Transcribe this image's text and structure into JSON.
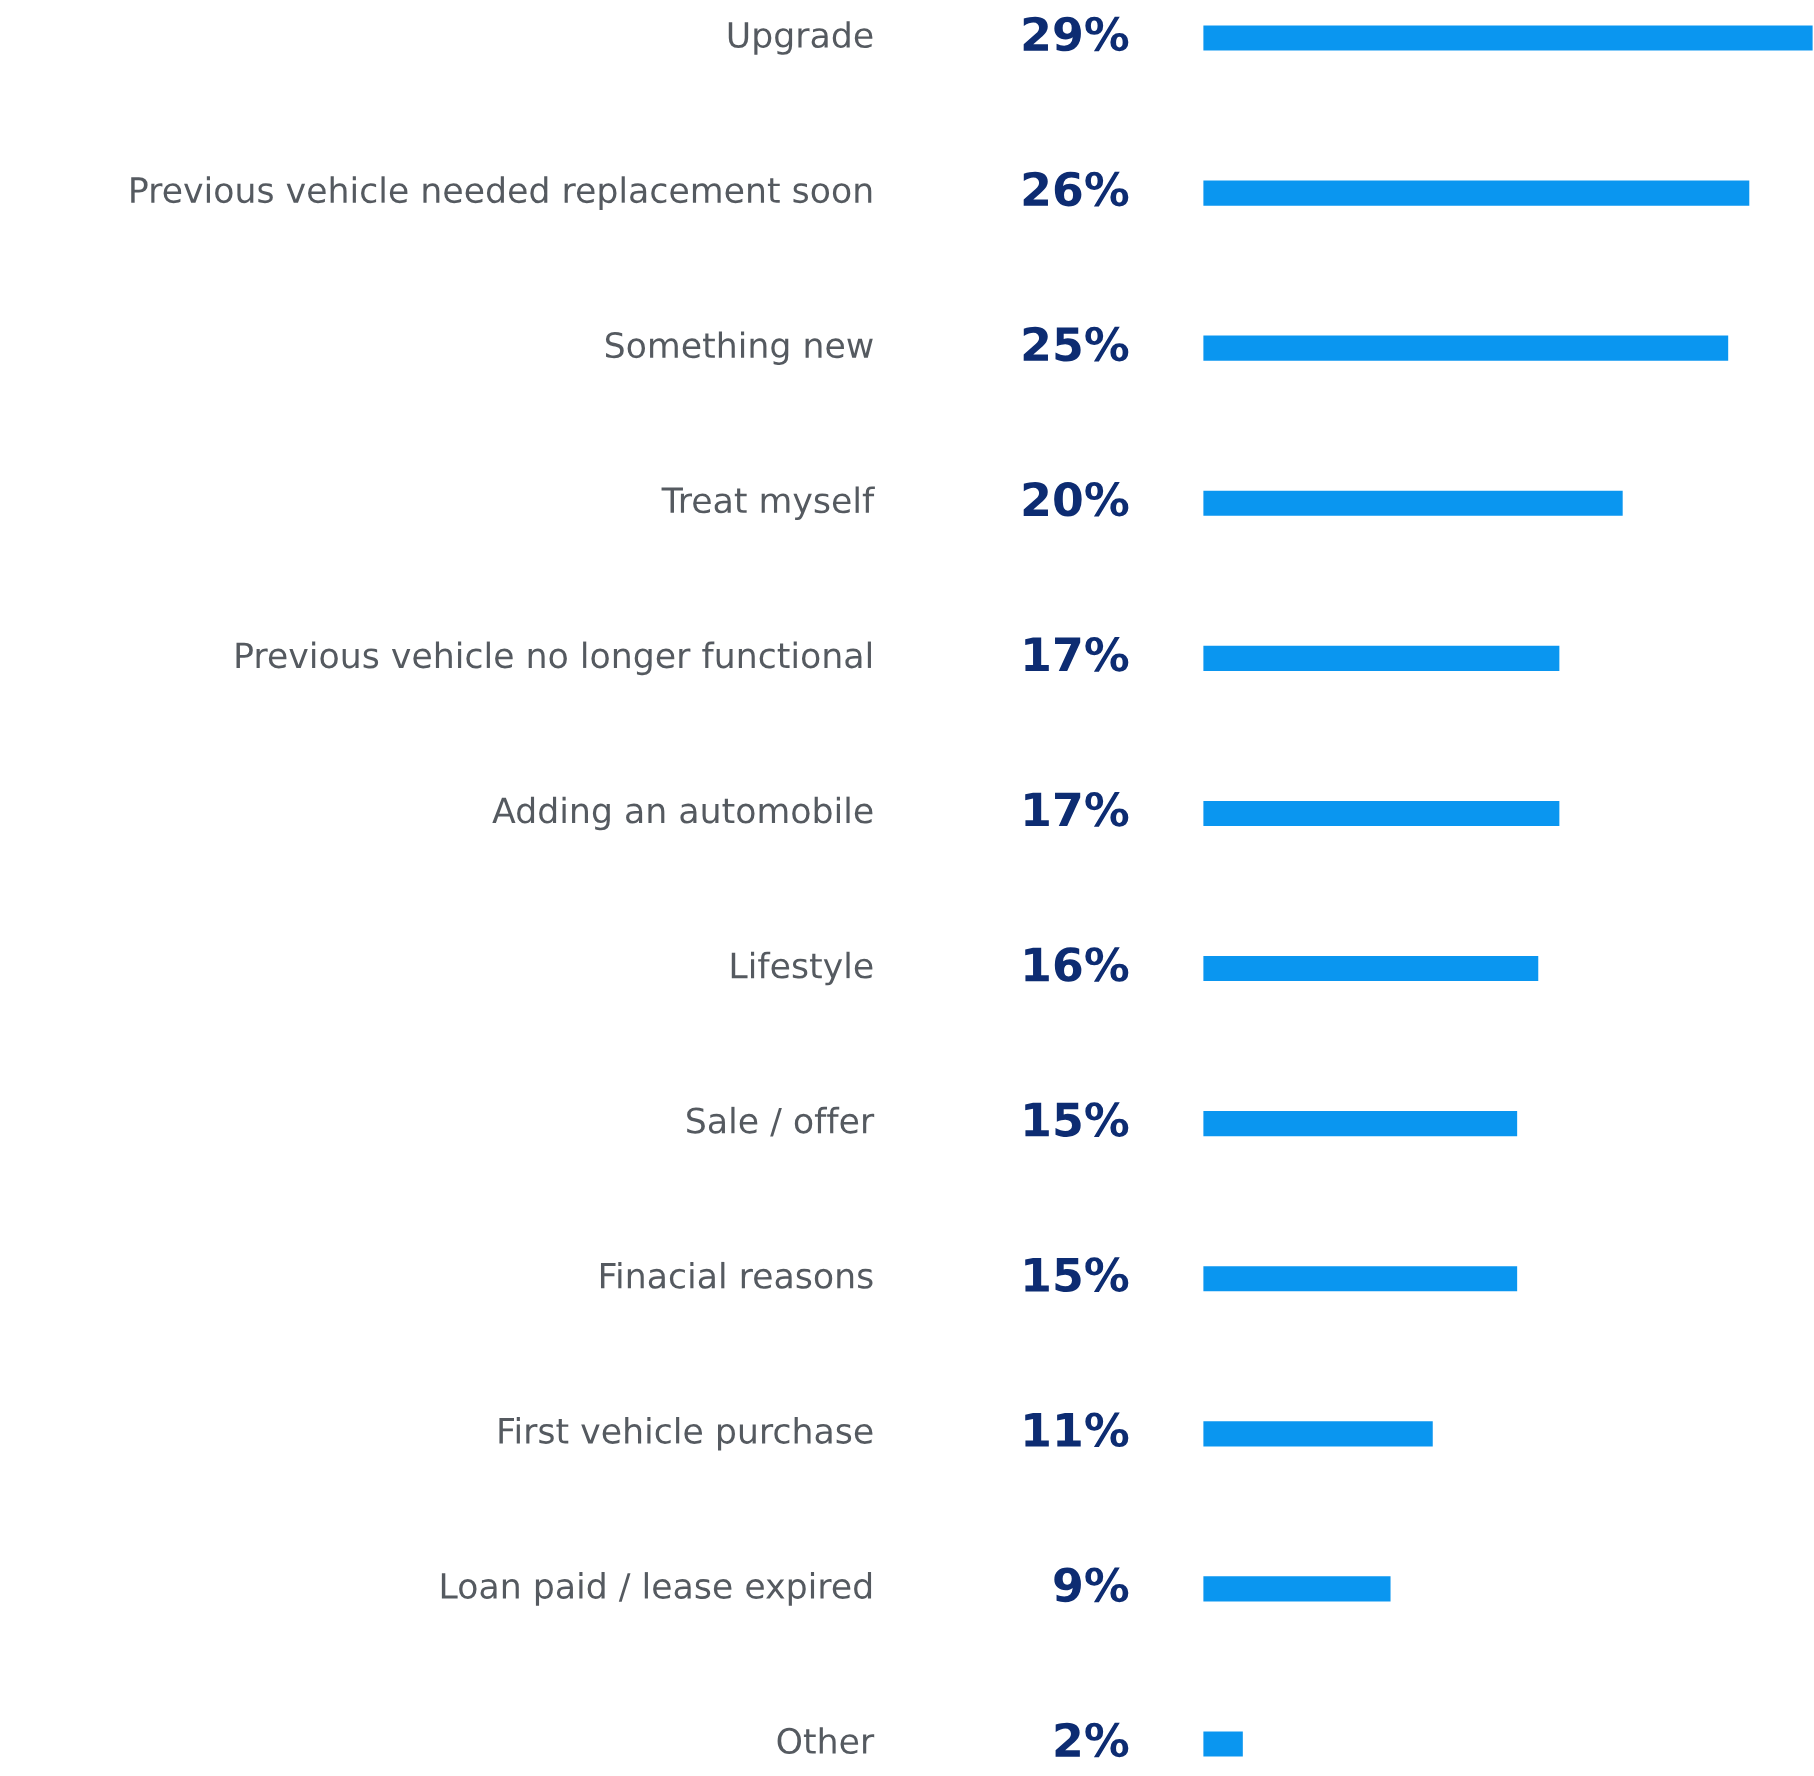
{
  "chart_data": {
    "type": "bar",
    "orientation": "horizontal",
    "categories": [
      "Upgrade",
      "Previous vehicle needed replacement soon",
      "Something new",
      "Treat myself",
      "Previous vehicle no longer functional",
      "Adding an automobile",
      "Lifestyle",
      "Sale / offer",
      "Finacial reasons",
      "First vehicle purchase",
      "Loan paid / lease expired",
      "Other"
    ],
    "values": [
      29,
      26,
      25,
      20,
      17,
      17,
      16,
      15,
      15,
      11,
      9,
      2
    ],
    "value_labels": [
      "29%",
      "26%",
      "25%",
      "20%",
      "17%",
      "17%",
      "16%",
      "15%",
      "15%",
      "11%",
      "9%",
      "2%"
    ],
    "color": "#0a96f0"
  }
}
